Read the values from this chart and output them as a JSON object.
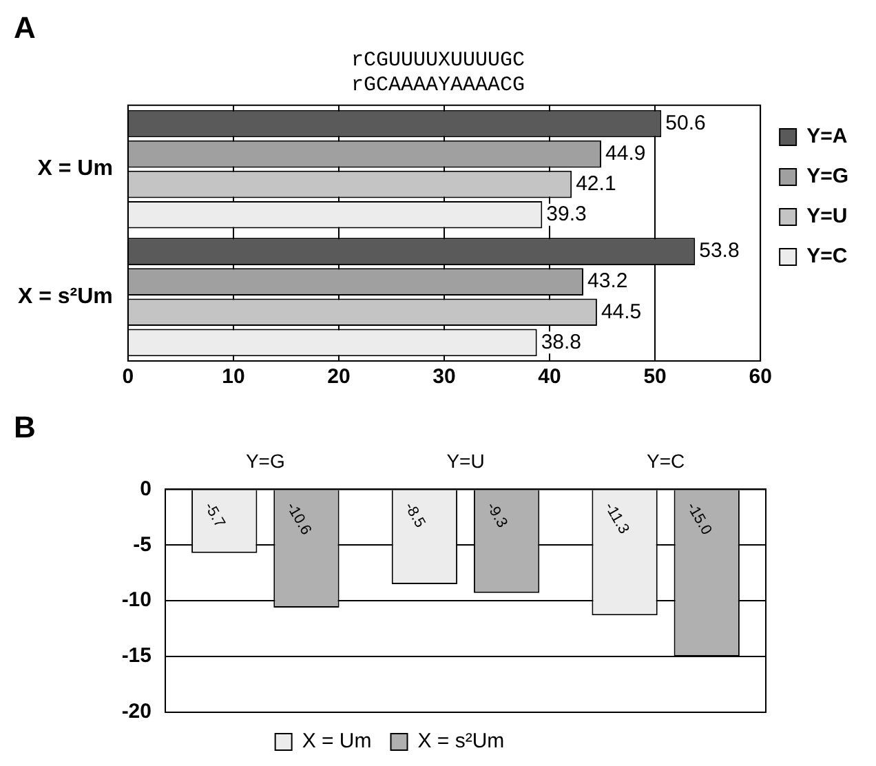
{
  "chart_data": [
    {
      "type": "bar",
      "title": "A",
      "annotations": [
        "rCGUUUUXUUUUGC",
        "rGCAAAAYAAAACG"
      ],
      "orientation": "horizontal",
      "categories": [
        "X = Um",
        "X = s²Um"
      ],
      "series": [
        {
          "name": "Y=A",
          "color": "#5a5a5a",
          "values": [
            50.6,
            53.8
          ]
        },
        {
          "name": "Y=G",
          "color": "#a0a0a0",
          "values": [
            44.9,
            43.2
          ]
        },
        {
          "name": "Y=U",
          "color": "#c4c4c4",
          "values": [
            42.1,
            44.5
          ]
        },
        {
          "name": "Y=C",
          "color": "#ececec",
          "values": [
            39.3,
            38.8
          ]
        }
      ],
      "xlim": [
        0,
        60
      ],
      "xticks": [
        0,
        10,
        20,
        30,
        40,
        50,
        60
      ],
      "grid": "x",
      "legend": "right",
      "data_labels": true
    },
    {
      "type": "bar",
      "title": "B",
      "categories": [
        "Y=G",
        "Y=U",
        "Y=C"
      ],
      "series": [
        {
          "name": "X = Um",
          "color": "#ececec",
          "values": [
            -5.7,
            -8.5,
            -11.3
          ],
          "value_labels": [
            "-5.7",
            "-8.5",
            "-11.3"
          ]
        },
        {
          "name": "X = s²Um",
          "color": "#b0b0b0",
          "values": [
            -10.6,
            -9.3,
            -15.0
          ],
          "value_labels": [
            "-10.6",
            "-9.3",
            "-15.0"
          ]
        }
      ],
      "ylim": [
        -20,
        0
      ],
      "yticks": [
        0,
        -5,
        -10,
        -15,
        -20
      ],
      "grid": "y",
      "legend": "bottom"
    }
  ]
}
